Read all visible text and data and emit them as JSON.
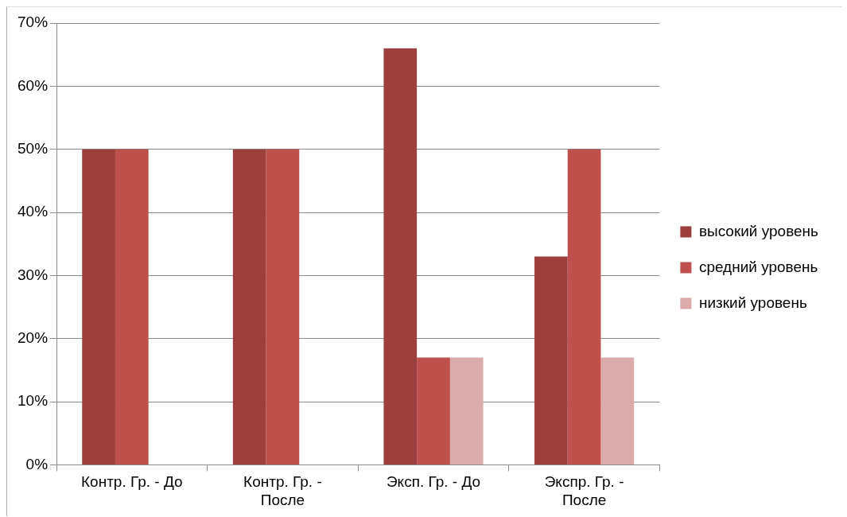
{
  "chart_data": {
    "type": "bar",
    "categories": [
      "Контр. Гр. - До",
      "Контр. Гр. - После",
      "Эксп. Гр. - До",
      "Экспр. Гр. - После"
    ],
    "series": [
      {
        "name": "высокий уровень",
        "color": "#9c3f3e",
        "values": [
          50,
          50,
          66,
          33
        ]
      },
      {
        "name": "средний уровень",
        "color": "#c0504d",
        "values": [
          50,
          50,
          17,
          50
        ]
      },
      {
        "name": "низкий уровень",
        "color": "#dbaaaa",
        "values": [
          0,
          0,
          17,
          17
        ]
      }
    ],
    "ylim": [
      0,
      70
    ],
    "yticks": [
      {
        "value": 0,
        "label": "0%"
      },
      {
        "value": 10,
        "label": "10%"
      },
      {
        "value": 20,
        "label": "20%"
      },
      {
        "value": 30,
        "label": "30%"
      },
      {
        "value": 40,
        "label": "40%"
      },
      {
        "value": 50,
        "label": "50%"
      },
      {
        "value": 60,
        "label": "60%"
      },
      {
        "value": 70,
        "label": "70%"
      }
    ],
    "grid": "y",
    "legend": "right"
  }
}
